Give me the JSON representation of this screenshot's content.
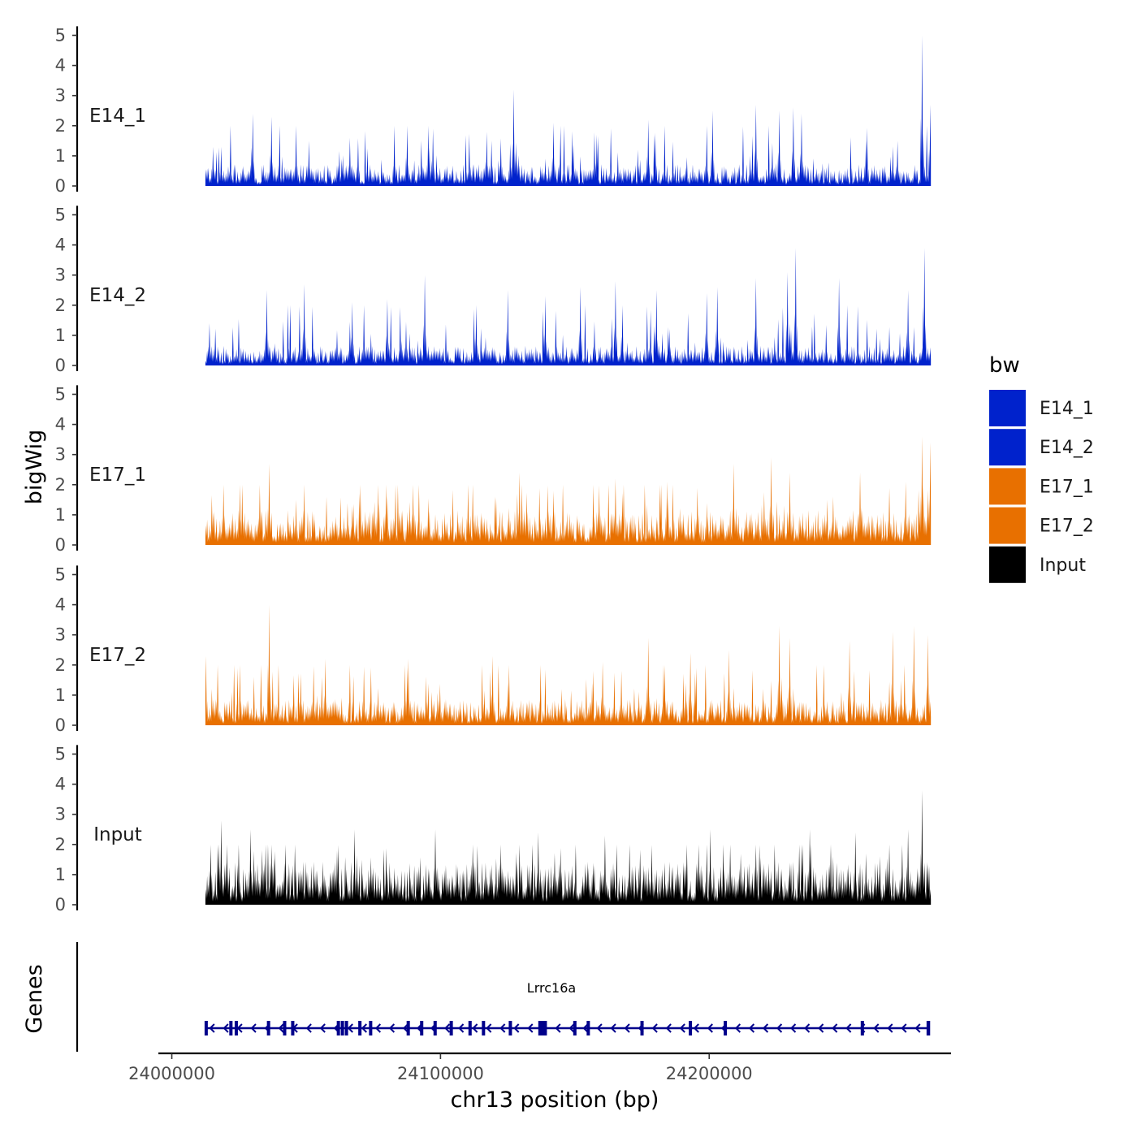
{
  "chart_data": {
    "type": "area",
    "title": "",
    "xlabel": "chr13 position (bp)",
    "ylabel": "bigWig",
    "gene_track_label": "Genes",
    "xlim": [
      23995000,
      24290000
    ],
    "ylim": [
      0,
      5
    ],
    "x_ticks": [
      24000000,
      24100000,
      24200000
    ],
    "x_tick_labels": [
      "24000000",
      "24100000",
      "24200000"
    ],
    "y_ticks": [
      0,
      1,
      2,
      3,
      4,
      5
    ],
    "y_tick_labels": [
      "0",
      "1",
      "2",
      "3",
      "4",
      "5"
    ],
    "data_range": [
      24012500,
      24282500
    ],
    "legend": {
      "title": "bw",
      "placement": "right",
      "entries": [
        {
          "label": "E14_1",
          "color": "#0022CC"
        },
        {
          "label": "E14_2",
          "color": "#0022CC"
        },
        {
          "label": "E17_1",
          "color": "#E87000"
        },
        {
          "label": "E17_2",
          "color": "#E87000"
        },
        {
          "label": "Input",
          "color": "#000000"
        }
      ]
    },
    "series": [
      {
        "name": "E14_1",
        "color": "#0022CC",
        "baseline": 0.5,
        "noise": 1.1,
        "peaks": [
          {
            "x": 24015000,
            "y": 1.3
          },
          {
            "x": 24030000,
            "y": 2.4
          },
          {
            "x": 24037000,
            "y": 2.3
          },
          {
            "x": 24051000,
            "y": 1.5
          },
          {
            "x": 24066000,
            "y": 1.6
          },
          {
            "x": 24097000,
            "y": 1.9
          },
          {
            "x": 24117000,
            "y": 1.8
          },
          {
            "x": 24127000,
            "y": 3.2
          },
          {
            "x": 24142000,
            "y": 2.1
          },
          {
            "x": 24158000,
            "y": 1.7
          },
          {
            "x": 24177000,
            "y": 2.2
          },
          {
            "x": 24201000,
            "y": 2.5
          },
          {
            "x": 24217000,
            "y": 2.7
          },
          {
            "x": 24226000,
            "y": 2.5
          },
          {
            "x": 24231000,
            "y": 2.6
          },
          {
            "x": 24234000,
            "y": 2.4
          },
          {
            "x": 24258000,
            "y": 1.5
          },
          {
            "x": 24270000,
            "y": 1.5
          },
          {
            "x": 24279000,
            "y": 5.0
          },
          {
            "x": 24282000,
            "y": 2.7
          }
        ]
      },
      {
        "name": "E14_2",
        "color": "#0022CC",
        "baseline": 0.45,
        "noise": 1.2,
        "peaks": [
          {
            "x": 24014000,
            "y": 1.4
          },
          {
            "x": 24035000,
            "y": 2.5
          },
          {
            "x": 24049000,
            "y": 2.7
          },
          {
            "x": 24067000,
            "y": 2.1
          },
          {
            "x": 24080000,
            "y": 2.2
          },
          {
            "x": 24094000,
            "y": 3.0
          },
          {
            "x": 24113000,
            "y": 2.0
          },
          {
            "x": 24125000,
            "y": 2.5
          },
          {
            "x": 24139000,
            "y": 2.3
          },
          {
            "x": 24152000,
            "y": 2.6
          },
          {
            "x": 24165000,
            "y": 2.8
          },
          {
            "x": 24180000,
            "y": 2.5
          },
          {
            "x": 24199000,
            "y": 2.4
          },
          {
            "x": 24203000,
            "y": 2.6
          },
          {
            "x": 24217000,
            "y": 2.9
          },
          {
            "x": 24229000,
            "y": 3.1
          },
          {
            "x": 24232000,
            "y": 3.9
          },
          {
            "x": 24248000,
            "y": 2.9
          },
          {
            "x": 24274000,
            "y": 2.5
          },
          {
            "x": 24280000,
            "y": 3.9
          }
        ]
      },
      {
        "name": "E17_1",
        "color": "#E87000",
        "baseline": 0.8,
        "noise": 1.0,
        "peaks": [
          {
            "x": 24019000,
            "y": 2.0
          },
          {
            "x": 24036000,
            "y": 2.7
          },
          {
            "x": 24046000,
            "y": 1.5
          },
          {
            "x": 24070000,
            "y": 2.0
          },
          {
            "x": 24110000,
            "y": 2.0
          },
          {
            "x": 24129000,
            "y": 2.4
          },
          {
            "x": 24165000,
            "y": 2.2
          },
          {
            "x": 24184000,
            "y": 2.1
          },
          {
            "x": 24209000,
            "y": 2.7
          },
          {
            "x": 24223000,
            "y": 2.9
          },
          {
            "x": 24230000,
            "y": 2.4
          },
          {
            "x": 24256000,
            "y": 2.4
          },
          {
            "x": 24273000,
            "y": 2.1
          },
          {
            "x": 24279000,
            "y": 3.6
          },
          {
            "x": 24282000,
            "y": 3.4
          }
        ]
      },
      {
        "name": "E17_2",
        "color": "#E87000",
        "baseline": 0.6,
        "noise": 1.2,
        "peaks": [
          {
            "x": 24012500,
            "y": 2.3
          },
          {
            "x": 24036000,
            "y": 4.0
          },
          {
            "x": 24057000,
            "y": 2.2
          },
          {
            "x": 24088000,
            "y": 2.2
          },
          {
            "x": 24119000,
            "y": 2.3
          },
          {
            "x": 24160000,
            "y": 2.1
          },
          {
            "x": 24177000,
            "y": 2.9
          },
          {
            "x": 24193000,
            "y": 2.4
          },
          {
            "x": 24207000,
            "y": 2.5
          },
          {
            "x": 24226000,
            "y": 3.3
          },
          {
            "x": 24230000,
            "y": 2.9
          },
          {
            "x": 24252000,
            "y": 2.8
          },
          {
            "x": 24268000,
            "y": 3.1
          },
          {
            "x": 24276000,
            "y": 3.3
          },
          {
            "x": 24281000,
            "y": 3.0
          }
        ]
      },
      {
        "name": "Input",
        "color": "#000000",
        "baseline": 1.0,
        "noise": 1.1,
        "peaks": [
          {
            "x": 24018000,
            "y": 2.8
          },
          {
            "x": 24029000,
            "y": 2.5
          },
          {
            "x": 24068000,
            "y": 2.5
          },
          {
            "x": 24098000,
            "y": 2.5
          },
          {
            "x": 24136000,
            "y": 2.4
          },
          {
            "x": 24161000,
            "y": 2.3
          },
          {
            "x": 24200000,
            "y": 2.5
          },
          {
            "x": 24237000,
            "y": 2.5
          },
          {
            "x": 24254000,
            "y": 2.4
          },
          {
            "x": 24274000,
            "y": 2.5
          },
          {
            "x": 24279000,
            "y": 3.8
          }
        ]
      }
    ],
    "gene": {
      "name": "Lrrc16a",
      "strand": "-",
      "start": 24012500,
      "end": 24282000,
      "color": "#00008B",
      "exons": [
        24012800,
        24022000,
        24024000,
        24036000,
        24042000,
        24045000,
        24062000,
        24063500,
        24065000,
        24070000,
        24074000,
        24088000,
        24093000,
        24098000,
        24104000,
        24111000,
        24116000,
        24126000,
        24137000,
        24138000,
        24139000,
        24150000,
        24155000,
        24175000,
        24193000,
        24206000,
        24257000,
        24281500
      ]
    }
  }
}
